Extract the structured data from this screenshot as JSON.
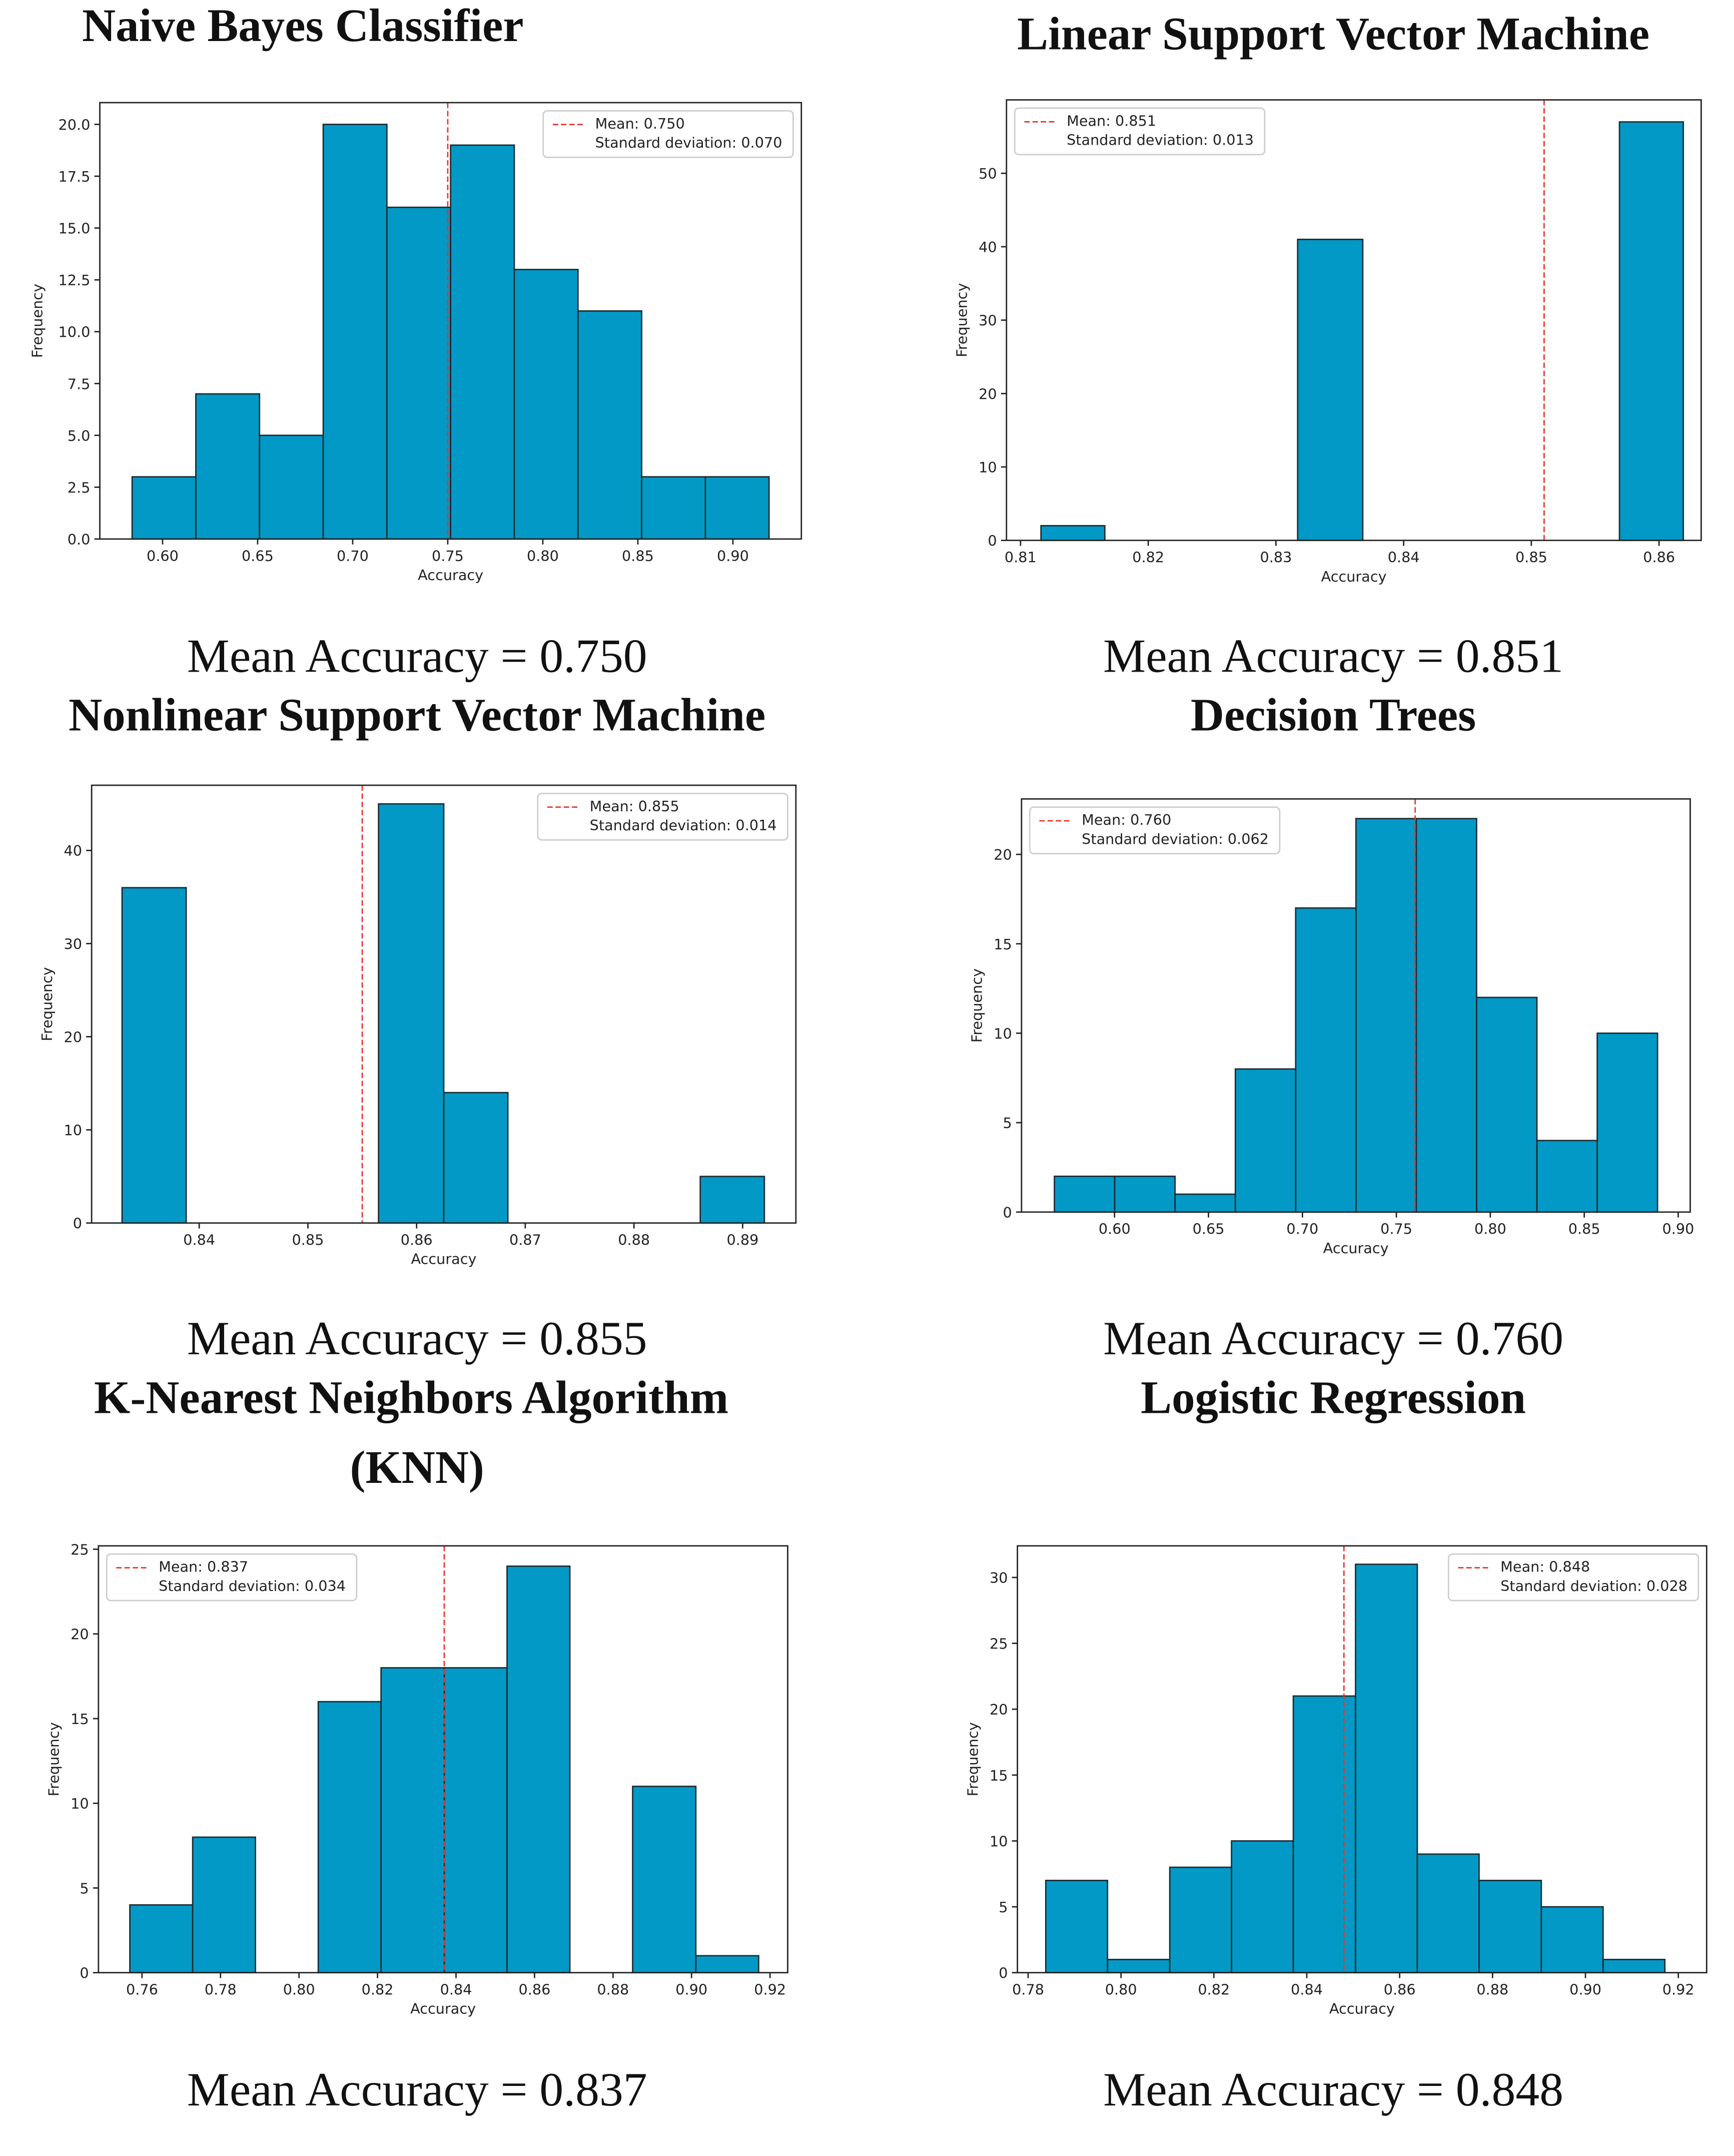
{
  "chart_data": [
    {
      "type": "histogram",
      "title": "Naive Bayes Classifier",
      "caption": "Mean Accuracy = 0.750",
      "xlabel": "Accuracy",
      "ylabel": "Frequency",
      "color": "#0399c6",
      "edge_color": "#1c2b33",
      "mean_color": "#e8322e",
      "bins": [
        0.584,
        0.6175,
        0.651,
        0.6845,
        0.718,
        0.7515,
        0.785,
        0.8185,
        0.852,
        0.8855,
        0.919
      ],
      "values": [
        3,
        7,
        5,
        20,
        16,
        19,
        13,
        11,
        3,
        3
      ],
      "mean": 0.75,
      "legend": [
        "Mean: 0.750",
        "Standard deviation: 0.070"
      ],
      "legend_loc": "upper right",
      "xlim": [
        0.567,
        0.936
      ],
      "ylim": [
        0,
        21.05
      ],
      "xticks": [
        {
          "value": 0.6,
          "label": "0.60"
        },
        0.65,
        {
          "value": 0.7,
          "label": "0.70"
        },
        0.75,
        {
          "value": 0.8,
          "label": "0.80"
        },
        0.85,
        {
          "value": 0.9,
          "label": "0.90"
        }
      ],
      "yticks": [
        {
          "value": 0,
          "label": "0.0"
        },
        2.5,
        {
          "value": 5,
          "label": "5.0"
        },
        7.5,
        {
          "value": 10,
          "label": "10.0"
        },
        12.5,
        {
          "value": 15,
          "label": "15.0"
        },
        17.5,
        {
          "value": 20,
          "label": "20.0"
        }
      ]
    },
    {
      "type": "histogram",
      "title": "Linear Support Vector Machine",
      "caption": "Mean Accuracy = 0.851",
      "xlabel": "Accuracy",
      "ylabel": "Frequency",
      "color": "#0399c6",
      "edge_color": "#1c2b33",
      "mean_color": "#e8322e",
      "bins": [
        0.8116,
        0.8166,
        0.8217,
        0.8267,
        0.8317,
        0.8368,
        0.8418,
        0.8468,
        0.8518,
        0.8569,
        0.8619
      ],
      "values": [
        2,
        0,
        0,
        0,
        41,
        0,
        0,
        0,
        0,
        57
      ],
      "mean": 0.851,
      "legend": [
        "Mean: 0.851",
        "Standard deviation: 0.013"
      ],
      "legend_loc": "upper left",
      "xlim": [
        0.8089,
        0.8633
      ],
      "ylim": [
        0,
        60
      ],
      "xticks": [
        0.81,
        0.82,
        0.83,
        0.84,
        0.85,
        0.86
      ],
      "yticks": [
        0,
        10,
        20,
        30,
        40,
        50
      ]
    },
    {
      "type": "histogram",
      "title": "Nonlinear Support Vector Machine",
      "caption": "Mean Accuracy = 0.855",
      "xlabel": "Accuracy",
      "ylabel": "Frequency",
      "color": "#0399c6",
      "edge_color": "#1c2b33",
      "mean_color": "#e8322e",
      "bins": [
        0.8329,
        0.8388,
        0.8447,
        0.8506,
        0.8565,
        0.8625,
        0.8684,
        0.8743,
        0.8802,
        0.8861,
        0.892
      ],
      "values": [
        36,
        0,
        0,
        0,
        45,
        14,
        0,
        0,
        0,
        5
      ],
      "mean": 0.855,
      "legend": [
        "Mean: 0.855",
        "Standard deviation: 0.014"
      ],
      "legend_loc": "upper right",
      "xlim": [
        0.8301,
        0.8949
      ],
      "ylim": [
        0,
        47
      ],
      "xticks": [
        0.84,
        0.85,
        0.86,
        0.87,
        0.88,
        0.89
      ],
      "yticks": [
        0,
        10,
        20,
        30,
        40
      ]
    },
    {
      "type": "histogram",
      "title": "Decision Trees",
      "caption": "Mean Accuracy = 0.760",
      "xlabel": "Accuracy",
      "ylabel": "Frequency",
      "color": "#0399c6",
      "edge_color": "#1c2b33",
      "mean_color": "#e8322e",
      "bins": [
        0.568,
        0.6001,
        0.6322,
        0.6643,
        0.6964,
        0.7285,
        0.7606,
        0.7927,
        0.8248,
        0.8569,
        0.889
      ],
      "values": [
        2,
        2,
        1,
        8,
        17,
        22,
        22,
        12,
        4,
        10
      ],
      "mean": 0.76,
      "legend": [
        "Mean: 0.760",
        "Standard deviation: 0.062"
      ],
      "legend_loc": "upper left",
      "xlim": [
        0.5505,
        0.9064
      ],
      "ylim": [
        0,
        23.1
      ],
      "xticks": [
        {
          "value": 0.6,
          "label": "0.60"
        },
        0.65,
        {
          "value": 0.7,
          "label": "0.70"
        },
        0.75,
        {
          "value": 0.8,
          "label": "0.80"
        },
        0.85,
        {
          "value": 0.9,
          "label": "0.90"
        }
      ],
      "yticks": [
        0,
        5,
        10,
        15,
        20
      ]
    },
    {
      "type": "histogram",
      "title": "K-Nearest Neighbors Algorithm (KNN)",
      "caption": "Mean Accuracy = 0.837",
      "xlabel": "Accuracy",
      "ylabel": "Frequency",
      "color": "#0399c6",
      "edge_color": "#1c2b33",
      "mean_color": "#e8322e",
      "bins": [
        0.7569,
        0.7729,
        0.7889,
        0.8049,
        0.8209,
        0.837,
        0.853,
        0.869,
        0.885,
        0.9011,
        0.9171
      ],
      "values": [
        4,
        8,
        0,
        16,
        18,
        18,
        24,
        0,
        11,
        1
      ],
      "mean": 0.837,
      "legend": [
        "Mean: 0.837",
        "Standard deviation: 0.034"
      ],
      "legend_loc": "upper left",
      "xlim": [
        0.7489,
        0.9245
      ],
      "ylim": [
        0,
        25.2
      ],
      "xticks": [
        0.76,
        0.78,
        {
          "value": 0.8,
          "label": "0.80"
        },
        0.82,
        0.84,
        0.86,
        0.88,
        {
          "value": 0.9,
          "label": "0.90"
        },
        0.92
      ],
      "yticks": [
        0,
        5,
        10,
        15,
        20,
        25
      ]
    },
    {
      "type": "histogram",
      "title": "Logistic Regression",
      "caption": "Mean Accuracy = 0.848",
      "xlabel": "Accuracy",
      "ylabel": "Frequency",
      "color": "#0399c6",
      "edge_color": "#1c2b33",
      "mean_color": "#e8322e",
      "bins": [
        0.7838,
        0.7971,
        0.8105,
        0.8238,
        0.8371,
        0.8505,
        0.8638,
        0.8771,
        0.8905,
        0.9038,
        0.9171
      ],
      "values": [
        7,
        1,
        8,
        10,
        21,
        31,
        9,
        7,
        5,
        1
      ],
      "mean": 0.848,
      "legend": [
        "Mean: 0.848",
        "Standard deviation: 0.028"
      ],
      "legend_loc": "upper right",
      "xlim": [
        0.7777,
        0.9261
      ],
      "ylim": [
        0,
        32.4
      ],
      "xticks": [
        0.78,
        {
          "value": 0.8,
          "label": "0.80"
        },
        0.82,
        0.84,
        0.86,
        0.88,
        {
          "value": 0.9,
          "label": "0.90"
        },
        0.92
      ],
      "yticks": [
        0,
        5,
        10,
        15,
        20,
        25,
        30
      ]
    }
  ]
}
